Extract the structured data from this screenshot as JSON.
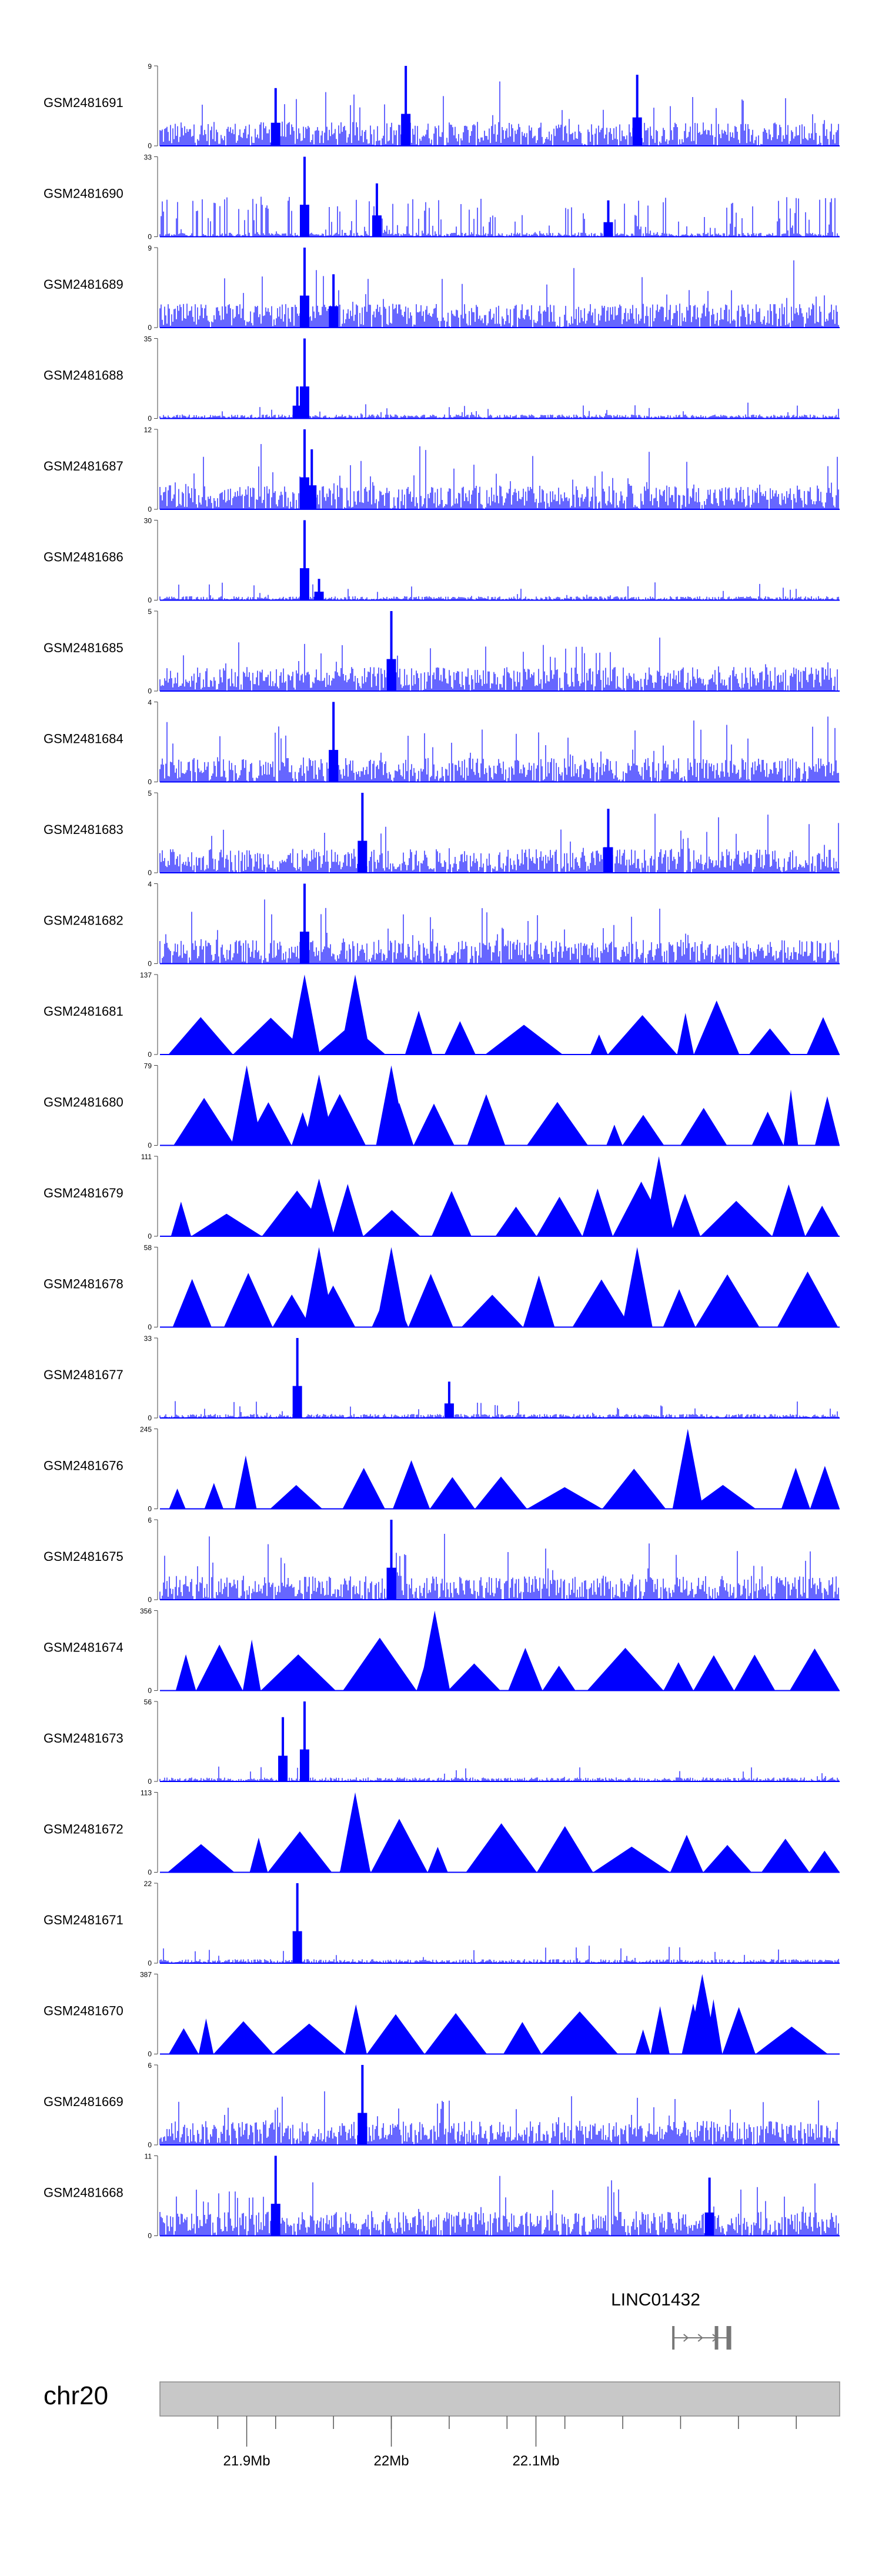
{
  "chart_data": {
    "type": "coverage-tracks",
    "title": "",
    "chromosome": "chr20",
    "x_range_mb": [
      21.84,
      22.31
    ],
    "axis": {
      "ticks_mb": [
        21.88,
        21.92,
        21.96,
        22.0,
        22.04,
        22.08,
        22.12,
        22.16,
        22.2,
        22.24,
        22.28
      ],
      "labeled_ticks": [
        {
          "pos_mb": 21.9,
          "label": "21.9Mb"
        },
        {
          "pos_mb": 22.0,
          "label": "22Mb"
        },
        {
          "pos_mb": 22.1,
          "label": "22.1Mb"
        }
      ]
    },
    "gene": {
      "name": "LINC01432",
      "start_mb": 22.195,
      "end_mb": 22.235,
      "strand": "+"
    },
    "track_color": "#0000ff",
    "tracks": [
      {
        "name": "GSM2481691",
        "ymin": 0,
        "ymax": 9,
        "style": "dense",
        "peaks": [
          [
            21.92,
            6.5
          ],
          [
            22.01,
            9
          ],
          [
            22.17,
            8
          ]
        ]
      },
      {
        "name": "GSM2481690",
        "ymin": 0,
        "ymax": 33,
        "style": "sparse",
        "peaks": [
          [
            21.94,
            33
          ],
          [
            21.99,
            22
          ],
          [
            22.15,
            15
          ]
        ]
      },
      {
        "name": "GSM2481689",
        "ymin": 0,
        "ymax": 9,
        "style": "dense",
        "peaks": [
          [
            21.94,
            9
          ],
          [
            21.96,
            6
          ]
        ]
      },
      {
        "name": "GSM2481688",
        "ymin": 0,
        "ymax": 35,
        "style": "lowpeak",
        "peaks": [
          [
            21.94,
            35
          ],
          [
            21.935,
            14
          ]
        ]
      },
      {
        "name": "GSM2481687",
        "ymin": 0,
        "ymax": 12,
        "style": "dense",
        "peaks": [
          [
            21.94,
            12
          ],
          [
            21.945,
            9
          ]
        ]
      },
      {
        "name": "GSM2481686",
        "ymin": 0,
        "ymax": 30,
        "style": "lowpeak",
        "peaks": [
          [
            21.94,
            30
          ],
          [
            21.95,
            8
          ]
        ]
      },
      {
        "name": "GSM2481685",
        "ymin": 0,
        "ymax": 5,
        "style": "dense",
        "peaks": [
          [
            22.0,
            5
          ]
        ]
      },
      {
        "name": "GSM2481684",
        "ymin": 0,
        "ymax": 4,
        "style": "dense",
        "peaks": [
          [
            21.96,
            4
          ]
        ]
      },
      {
        "name": "GSM2481683",
        "ymin": 0,
        "ymax": 5,
        "style": "dense",
        "peaks": [
          [
            21.98,
            5
          ],
          [
            22.15,
            4
          ]
        ]
      },
      {
        "name": "GSM2481682",
        "ymin": 0,
        "ymax": 4,
        "style": "dense",
        "peaks": [
          [
            21.94,
            4
          ]
        ]
      },
      {
        "name": "GSM2481681",
        "ymin": 0,
        "ymax": 137,
        "style": "triangles",
        "peaks": [
          [
            21.94,
            137
          ],
          [
            21.975,
            137
          ]
        ]
      },
      {
        "name": "GSM2481680",
        "ymin": 0,
        "ymax": 79,
        "style": "triangles",
        "peaks": [
          [
            21.9,
            79
          ],
          [
            21.95,
            70
          ],
          [
            22.0,
            79
          ]
        ]
      },
      {
        "name": "GSM2481679",
        "ymin": 0,
        "ymax": 111,
        "style": "triangles",
        "peaks": [
          [
            21.95,
            80
          ],
          [
            22.185,
            111
          ]
        ]
      },
      {
        "name": "GSM2481678",
        "ymin": 0,
        "ymax": 58,
        "style": "triangles",
        "peaks": [
          [
            21.95,
            58
          ],
          [
            22.0,
            58
          ],
          [
            22.17,
            58
          ]
        ]
      },
      {
        "name": "GSM2481677",
        "ymin": 0,
        "ymax": 33,
        "style": "lowpeak",
        "peaks": [
          [
            21.935,
            33
          ],
          [
            22.04,
            15
          ]
        ]
      },
      {
        "name": "GSM2481676",
        "ymin": 0,
        "ymax": 245,
        "style": "triangles",
        "peaks": [
          [
            22.205,
            245
          ]
        ]
      },
      {
        "name": "GSM2481675",
        "ymin": 0,
        "ymax": 6,
        "style": "dense",
        "peaks": [
          [
            22.0,
            6
          ]
        ]
      },
      {
        "name": "GSM2481674",
        "ymin": 0,
        "ymax": 356,
        "style": "triangles",
        "peaks": [
          [
            22.03,
            356
          ]
        ]
      },
      {
        "name": "GSM2481673",
        "ymin": 0,
        "ymax": 56,
        "style": "lowpeak",
        "peaks": [
          [
            21.925,
            45
          ],
          [
            21.94,
            56
          ]
        ]
      },
      {
        "name": "GSM2481672",
        "ymin": 0,
        "ymax": 113,
        "style": "triangles",
        "peaks": [
          [
            21.975,
            113
          ]
        ]
      },
      {
        "name": "GSM2481671",
        "ymin": 0,
        "ymax": 22,
        "style": "lowpeak",
        "peaks": [
          [
            21.935,
            22
          ]
        ]
      },
      {
        "name": "GSM2481670",
        "ymin": 0,
        "ymax": 387,
        "style": "triangles",
        "peaks": [
          [
            22.215,
            387
          ]
        ]
      },
      {
        "name": "GSM2481669",
        "ymin": 0,
        "ymax": 6,
        "style": "dense",
        "peaks": [
          [
            21.98,
            6
          ]
        ]
      },
      {
        "name": "GSM2481668",
        "ymin": 0,
        "ymax": 11,
        "style": "dense",
        "peaks": [
          [
            21.92,
            11
          ],
          [
            22.22,
            8
          ]
        ]
      }
    ]
  }
}
